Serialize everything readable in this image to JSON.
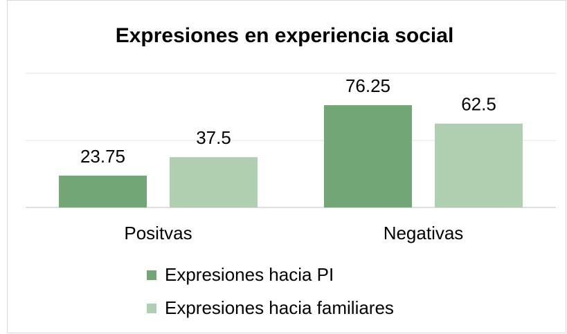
{
  "chart_data": {
    "type": "bar",
    "title": "Expresiones en experiencia social",
    "categories": [
      "Positvas",
      "Negativas"
    ],
    "series": [
      {
        "name": "Expresiones hacia PI",
        "color": "#72a676",
        "values": [
          23.75,
          76.25
        ]
      },
      {
        "name": "Expresiones hacia familiares",
        "color": "#afcfb0",
        "values": [
          37.5,
          62.5
        ]
      }
    ],
    "ylim": [
      0,
      100
    ],
    "yticks": [
      0,
      50,
      100
    ],
    "grid": true,
    "legend": "bottom"
  }
}
